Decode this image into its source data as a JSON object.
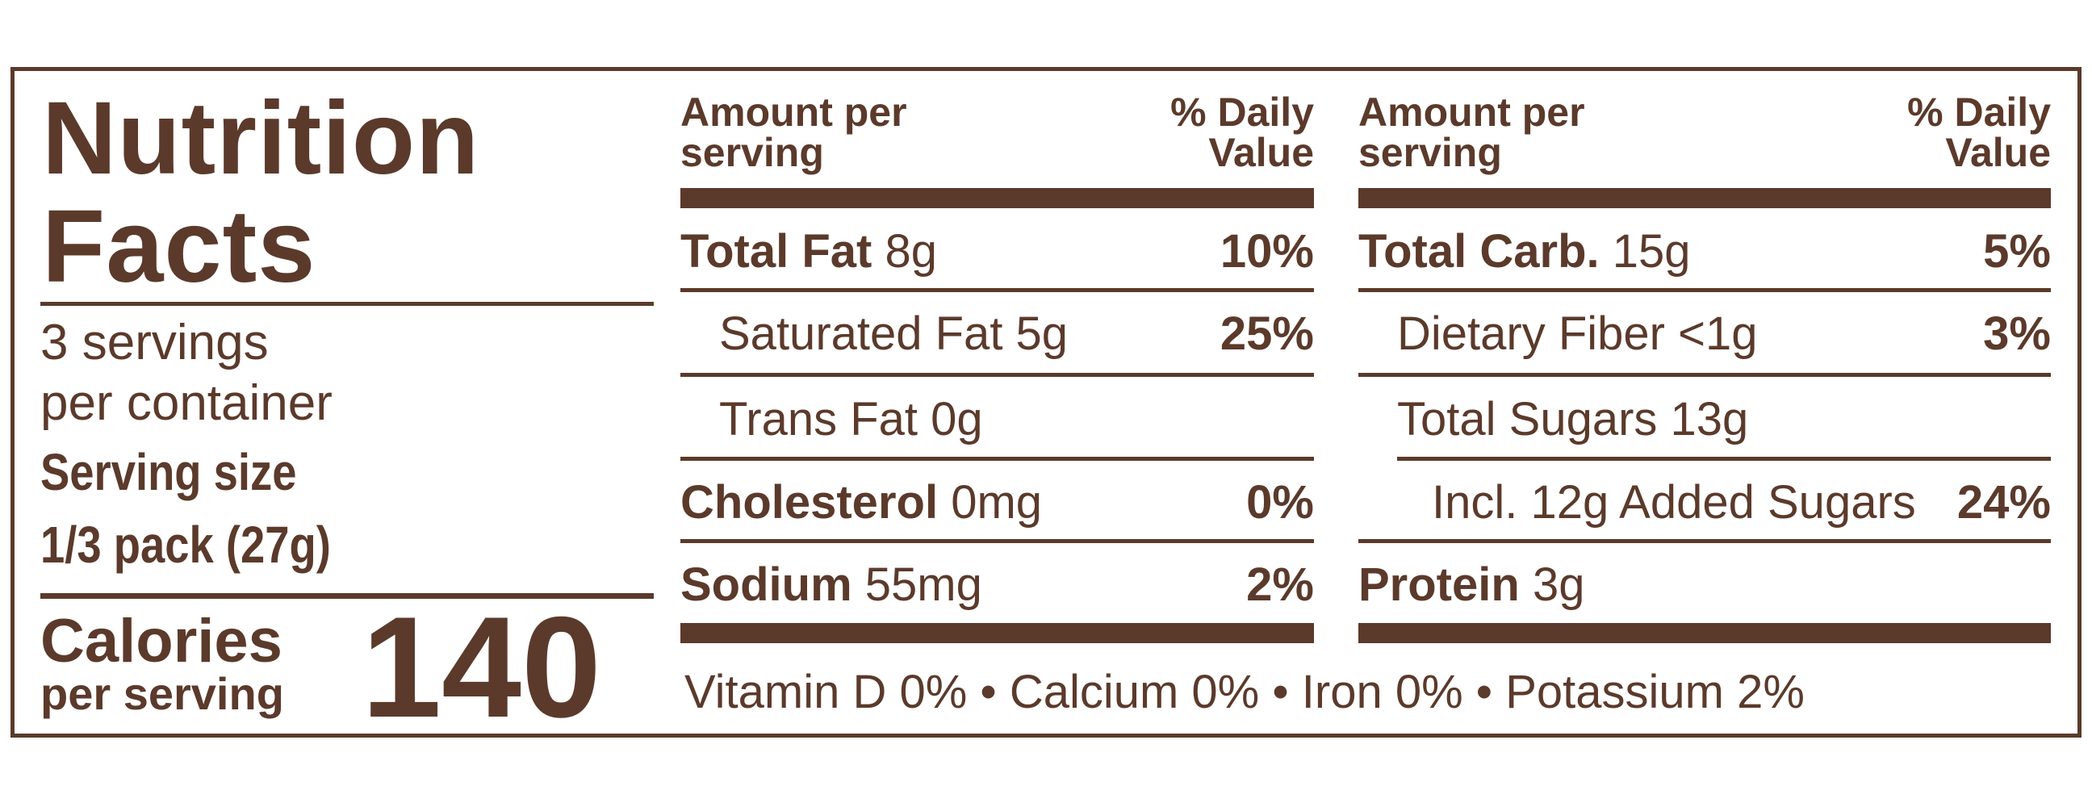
{
  "title": "Nutrition Facts",
  "servings": {
    "count": "3 servings",
    "per": "per container",
    "label": "Serving size",
    "size": "1/3 pack (27g)"
  },
  "calories": {
    "label": "Calories",
    "sub": "per serving",
    "value": "140"
  },
  "columns": [
    {
      "header": {
        "amount": "Amount per serving",
        "dv": "% Daily Value"
      },
      "rows": [
        {
          "name": "Total Fat",
          "amount": "8g",
          "dv": "10%"
        },
        {
          "name": "Saturated Fat 5g",
          "dv": "25%"
        },
        {
          "name": "Trans Fat 0g"
        },
        {
          "name": "Cholesterol",
          "amount": "0mg",
          "dv": "0%"
        },
        {
          "name": "Sodium",
          "amount": "55mg",
          "dv": "2%"
        }
      ]
    },
    {
      "header": {
        "amount": "Amount per serving",
        "dv": "% Daily Value"
      },
      "rows": [
        {
          "name": "Total Carb.",
          "amount": "15g",
          "dv": "5%"
        },
        {
          "name": "Dietary Fiber <1g",
          "dv": "3%"
        },
        {
          "name": "Total Sugars 13g"
        },
        {
          "name": "Incl. 12g Added Sugars",
          "dv": "24%"
        },
        {
          "name": "Protein",
          "amount": "3g"
        }
      ]
    }
  ],
  "footer": "Vitamin D 0% • Calcium 0% • Iron 0% • Potassium 2%"
}
